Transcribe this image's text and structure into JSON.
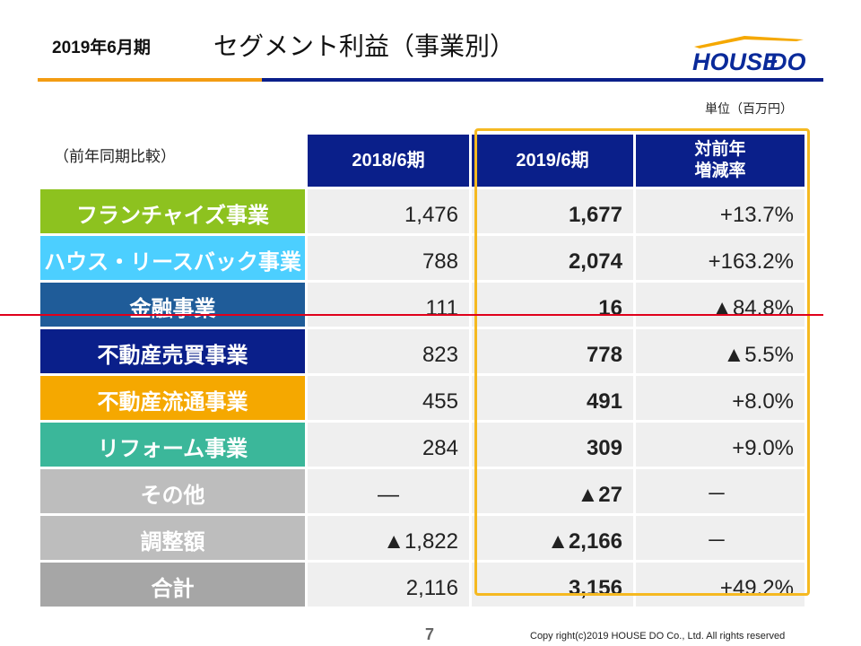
{
  "header": {
    "period": "2019年6月期",
    "title": "セグメント利益（事業別）",
    "logo_text": "HOUSEDO"
  },
  "unit_note": "単位（百万円）",
  "comparison_note": "（前年同期比較）",
  "table": {
    "columns": {
      "prev": "2018/6期",
      "curr": "2019/6期",
      "rate_line1": "対前年",
      "rate_line2": "増減率"
    },
    "rows": [
      {
        "label": "フランチャイズ事業",
        "color": "#8dc21f",
        "prev": "1,476",
        "curr": "1,677",
        "rate": "+13.7%"
      },
      {
        "label": "ハウス・リースバック事業",
        "color": "#4ccfff",
        "prev": "788",
        "curr": "2,074",
        "rate": "+163.2%"
      },
      {
        "label": "金融事業",
        "color": "#1f5c99",
        "prev": "111",
        "curr": "16",
        "rate": "▲84.8%"
      },
      {
        "label": "不動産売買事業",
        "color": "#0a1f8a",
        "prev": "823",
        "curr": "778",
        "rate": "▲5.5%"
      },
      {
        "label": "不動産流通事業",
        "color": "#f5a800",
        "prev": "455",
        "curr": "491",
        "rate": "+8.0%"
      },
      {
        "label": "リフォーム事業",
        "color": "#3bb79a",
        "prev": "284",
        "curr": "309",
        "rate": "+9.0%"
      },
      {
        "label": "その他",
        "color": "#bdbdbd",
        "prev": "—",
        "curr": "▲27",
        "rate": "－"
      },
      {
        "label": "調整額",
        "color": "#bdbdbd",
        "prev": "▲1,822",
        "curr": "▲2,166",
        "rate": "－"
      },
      {
        "label": "合計",
        "color": "#a6a6a6",
        "prev": "2,116",
        "curr": "3,156",
        "rate": "+49.2%"
      }
    ]
  },
  "footer": {
    "page_number": "7",
    "copyright": "Copy right(c)2019 HOUSE DO Co., Ltd. All rights reserved"
  }
}
